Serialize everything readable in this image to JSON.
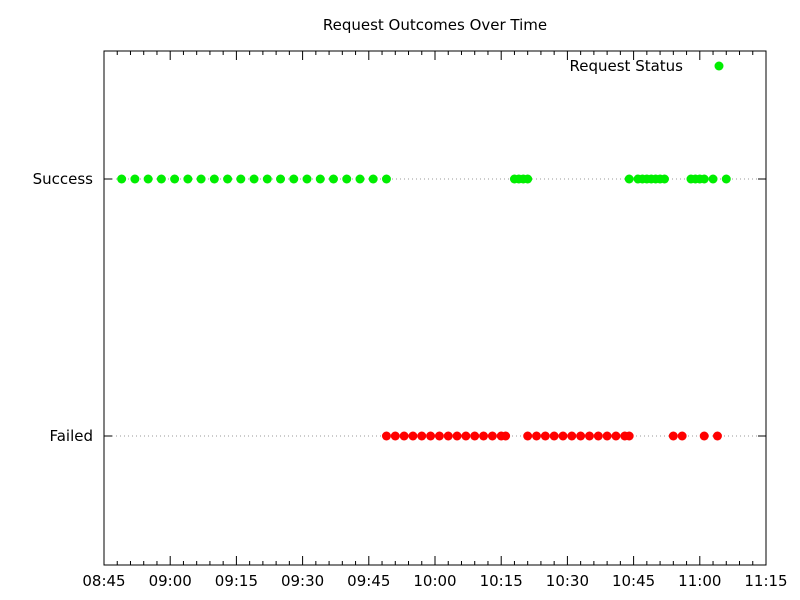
{
  "chart_data": {
    "type": "scatter",
    "title": "Request Outcomes Over Time",
    "xlabel": "",
    "ylabel": "",
    "x_axis": {
      "type": "time",
      "range": [
        "08:45",
        "11:15"
      ],
      "ticks": [
        "08:45",
        "09:00",
        "09:15",
        "09:30",
        "09:45",
        "10:00",
        "10:15",
        "10:30",
        "10:45",
        "11:00",
        "11:15"
      ]
    },
    "y_axis": {
      "type": "category",
      "categories": [
        "Failed",
        "Success"
      ]
    },
    "grid": "horizontal dotted lines at category levels",
    "legend": {
      "position": "top-right",
      "entries": [
        "Request Status"
      ]
    },
    "colors": {
      "Success": "#00ee00",
      "Failed": "#ff0000"
    },
    "series": [
      {
        "name": "Request Status",
        "points": [
          {
            "x": "08:49",
            "y": "Success"
          },
          {
            "x": "08:52",
            "y": "Success"
          },
          {
            "x": "08:55",
            "y": "Success"
          },
          {
            "x": "08:58",
            "y": "Success"
          },
          {
            "x": "09:01",
            "y": "Success"
          },
          {
            "x": "09:04",
            "y": "Success"
          },
          {
            "x": "09:07",
            "y": "Success"
          },
          {
            "x": "09:10",
            "y": "Success"
          },
          {
            "x": "09:13",
            "y": "Success"
          },
          {
            "x": "09:16",
            "y": "Success"
          },
          {
            "x": "09:19",
            "y": "Success"
          },
          {
            "x": "09:22",
            "y": "Success"
          },
          {
            "x": "09:25",
            "y": "Success"
          },
          {
            "x": "09:28",
            "y": "Success"
          },
          {
            "x": "09:31",
            "y": "Success"
          },
          {
            "x": "09:34",
            "y": "Success"
          },
          {
            "x": "09:37",
            "y": "Success"
          },
          {
            "x": "09:40",
            "y": "Success"
          },
          {
            "x": "09:43",
            "y": "Success"
          },
          {
            "x": "09:46",
            "y": "Success"
          },
          {
            "x": "09:49",
            "y": "Success"
          },
          {
            "x": "10:18",
            "y": "Success"
          },
          {
            "x": "10:19",
            "y": "Success"
          },
          {
            "x": "10:20",
            "y": "Success"
          },
          {
            "x": "10:21",
            "y": "Success"
          },
          {
            "x": "10:44",
            "y": "Success"
          },
          {
            "x": "10:46",
            "y": "Success"
          },
          {
            "x": "10:47",
            "y": "Success"
          },
          {
            "x": "10:48",
            "y": "Success"
          },
          {
            "x": "10:49",
            "y": "Success"
          },
          {
            "x": "10:50",
            "y": "Success"
          },
          {
            "x": "10:51",
            "y": "Success"
          },
          {
            "x": "10:52",
            "y": "Success"
          },
          {
            "x": "10:58",
            "y": "Success"
          },
          {
            "x": "10:59",
            "y": "Success"
          },
          {
            "x": "11:00",
            "y": "Success"
          },
          {
            "x": "11:01",
            "y": "Success"
          },
          {
            "x": "11:03",
            "y": "Success"
          },
          {
            "x": "11:06",
            "y": "Success"
          },
          {
            "x": "09:49",
            "y": "Failed"
          },
          {
            "x": "09:51",
            "y": "Failed"
          },
          {
            "x": "09:53",
            "y": "Failed"
          },
          {
            "x": "09:55",
            "y": "Failed"
          },
          {
            "x": "09:57",
            "y": "Failed"
          },
          {
            "x": "09:59",
            "y": "Failed"
          },
          {
            "x": "10:01",
            "y": "Failed"
          },
          {
            "x": "10:03",
            "y": "Failed"
          },
          {
            "x": "10:05",
            "y": "Failed"
          },
          {
            "x": "10:07",
            "y": "Failed"
          },
          {
            "x": "10:09",
            "y": "Failed"
          },
          {
            "x": "10:11",
            "y": "Failed"
          },
          {
            "x": "10:13",
            "y": "Failed"
          },
          {
            "x": "10:15",
            "y": "Failed"
          },
          {
            "x": "10:16",
            "y": "Failed"
          },
          {
            "x": "10:21",
            "y": "Failed"
          },
          {
            "x": "10:23",
            "y": "Failed"
          },
          {
            "x": "10:25",
            "y": "Failed"
          },
          {
            "x": "10:27",
            "y": "Failed"
          },
          {
            "x": "10:29",
            "y": "Failed"
          },
          {
            "x": "10:31",
            "y": "Failed"
          },
          {
            "x": "10:33",
            "y": "Failed"
          },
          {
            "x": "10:35",
            "y": "Failed"
          },
          {
            "x": "10:37",
            "y": "Failed"
          },
          {
            "x": "10:39",
            "y": "Failed"
          },
          {
            "x": "10:41",
            "y": "Failed"
          },
          {
            "x": "10:43",
            "y": "Failed"
          },
          {
            "x": "10:44",
            "y": "Failed"
          },
          {
            "x": "10:54",
            "y": "Failed"
          },
          {
            "x": "10:56",
            "y": "Failed"
          },
          {
            "x": "11:01",
            "y": "Failed"
          },
          {
            "x": "11:04",
            "y": "Failed"
          }
        ]
      }
    ]
  }
}
